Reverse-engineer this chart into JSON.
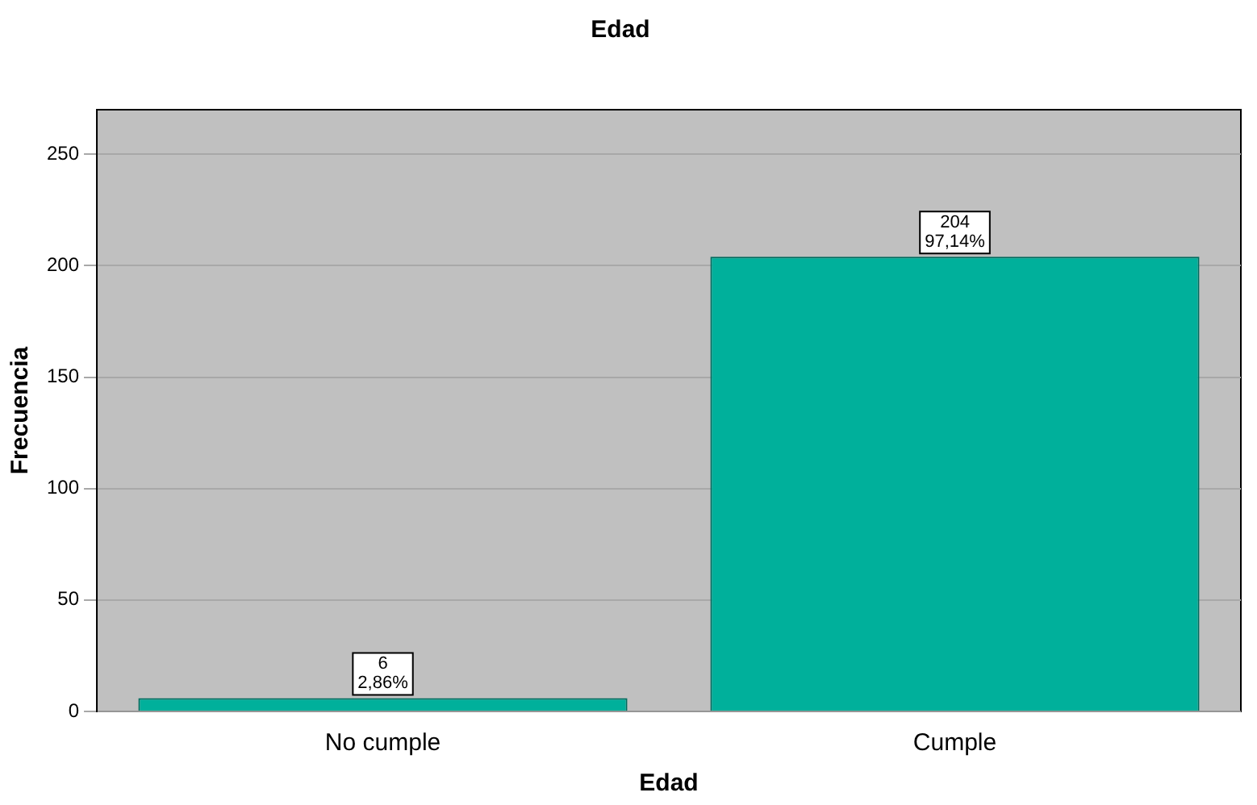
{
  "chart_data": {
    "type": "bar",
    "title": "Edad",
    "xlabel": "Edad",
    "ylabel": "Frecuencia",
    "categories": [
      "No cumple",
      "Cumple"
    ],
    "values": [
      6,
      204
    ],
    "value_labels": [
      "6\n2,86%",
      "204\n97,14%"
    ],
    "color": "#00b09b",
    "ylim": [
      0,
      270
    ],
    "yticks": [
      0,
      50,
      100,
      150,
      200,
      250
    ],
    "grid": "y",
    "legend": false
  }
}
